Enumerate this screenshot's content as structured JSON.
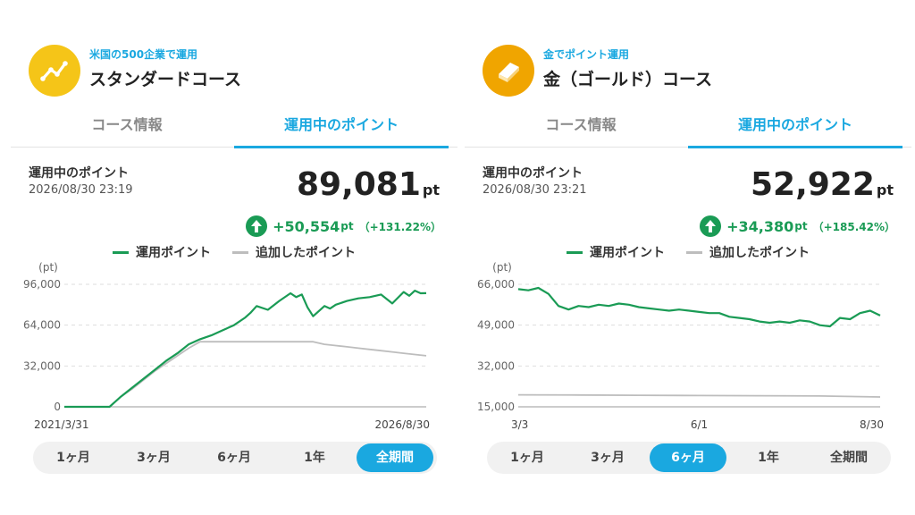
{
  "panels": [
    {
      "subtitle": "米国の500企業で運用",
      "title": "スタンダードコース",
      "logo": {
        "icon": "trend-up-icon",
        "color": "#f5c518"
      },
      "tabs": [
        "コース情報",
        "運用中のポイント"
      ],
      "active_tab": 1,
      "points_label": "運用中のポイント",
      "timestamp": "2026/08/30 23:19",
      "points_value": "89,081",
      "points_unit": "pt",
      "gain_value": "+50,554",
      "gain_unit": "pt",
      "gain_percent": "（+131.22%）",
      "legend": [
        "運用ポイント",
        "追加したポイント"
      ],
      "periods": [
        "1ヶ月",
        "3ヶ月",
        "6ヶ月",
        "1年",
        "全期間"
      ],
      "active_period": 4,
      "colors": {
        "accent": "#1aa8e0",
        "series_main": "#1a9b55",
        "series_added": "#bdbdbd",
        "gain": "#1a9b55"
      },
      "chart_data": {
        "type": "line",
        "unit_label": "(pt)",
        "y_ticks": [
          "96,000",
          "64,000",
          "32,000",
          "0"
        ],
        "y_tick_values": [
          96000,
          64000,
          32000,
          0
        ],
        "ylim": [
          0,
          96000
        ],
        "x_start_label": "2021/3/31",
        "x_end_label": "2026/8/30",
        "x_range": [
          0,
          64
        ],
        "x_unit": "months since 2021/3/31",
        "series": [
          {
            "name": "運用ポイント",
            "x": [
              0,
              2,
              4,
              6,
              8,
              10,
              12,
              14,
              16,
              18,
              20,
              22,
              24,
              26,
              28,
              30,
              32,
              33,
              34,
              36,
              38,
              40,
              41,
              42,
              43,
              44,
              46,
              47,
              48,
              50,
              52,
              54,
              56,
              58,
              60,
              61,
              62,
              63,
              64
            ],
            "y": [
              0,
              0,
              0,
              0,
              0,
              8000,
              15000,
              22000,
              29000,
              36000,
              42000,
              49000,
              53000,
              56000,
              60000,
              64000,
              70000,
              74000,
              79000,
              76000,
              83000,
              89000,
              86000,
              88000,
              78000,
              71000,
              79000,
              77000,
              80000,
              83000,
              85000,
              86000,
              88000,
              81000,
              90000,
              87000,
              91000,
              89000,
              89081
            ]
          },
          {
            "name": "追加したポイント",
            "x": [
              0,
              2,
              4,
              6,
              8,
              10,
              12,
              14,
              16,
              18,
              20,
              22,
              24,
              26,
              28,
              30,
              32,
              34,
              36,
              38,
              40,
              42,
              44,
              46,
              48,
              50,
              52,
              54,
              56,
              58,
              60,
              62,
              64
            ],
            "y": [
              0,
              0,
              0,
              0,
              0,
              8000,
              14000,
              21000,
              28000,
              34000,
              40000,
              46000,
              51000,
              51000,
              51000,
              51000,
              51000,
              51000,
              51000,
              51000,
              51000,
              51000,
              51000,
              49000,
              48000,
              47000,
              46000,
              45000,
              44000,
              43000,
              42000,
              41000,
              40000
            ]
          }
        ]
      }
    },
    {
      "subtitle": "金でポイント運用",
      "title": "金（ゴールド）コース",
      "logo": {
        "icon": "gold-bar-icon",
        "color": "#f0a500"
      },
      "tabs": [
        "コース情報",
        "運用中のポイント"
      ],
      "active_tab": 1,
      "points_label": "運用中のポイント",
      "timestamp": "2026/08/30 23:21",
      "points_value": "52,922",
      "points_unit": "pt",
      "gain_value": "+34,380",
      "gain_unit": "pt",
      "gain_percent": "（+185.42%）",
      "legend": [
        "運用ポイント",
        "追加したポイント"
      ],
      "periods": [
        "1ヶ月",
        "3ヶ月",
        "6ヶ月",
        "1年",
        "全期間"
      ],
      "active_period": 2,
      "colors": {
        "accent": "#1aa8e0",
        "series_main": "#1a9b55",
        "series_added": "#bdbdbd",
        "gain": "#1a9b55"
      },
      "chart_data": {
        "type": "line",
        "unit_label": "(pt)",
        "y_ticks": [
          "66,000",
          "49,000",
          "32,000",
          "15,000"
        ],
        "y_tick_values": [
          66000,
          49000,
          32000,
          15000
        ],
        "ylim": [
          15000,
          66000
        ],
        "x_tick_labels": [
          "3/3",
          "6/1",
          "8/30"
        ],
        "x_tick_values": [
          0,
          90,
          180
        ],
        "x_range": [
          0,
          180
        ],
        "x_unit": "days since 3/3",
        "series": [
          {
            "name": "運用ポイント",
            "x": [
              0,
              5,
              10,
              15,
              20,
              25,
              30,
              35,
              40,
              45,
              50,
              55,
              60,
              65,
              70,
              75,
              80,
              85,
              90,
              95,
              100,
              105,
              110,
              115,
              120,
              125,
              130,
              135,
              140,
              145,
              150,
              155,
              160,
              165,
              170,
              175,
              180
            ],
            "y": [
              64000,
              63500,
              64500,
              62000,
              57000,
              55500,
              57000,
              56500,
              57500,
              57000,
              58000,
              57500,
              56500,
              56000,
              55500,
              55000,
              55500,
              55000,
              54500,
              54000,
              54000,
              52500,
              52000,
              51500,
              50500,
              50000,
              50500,
              50000,
              51000,
              50500,
              49000,
              48500,
              52000,
              51500,
              54000,
              55000,
              53000
            ]
          },
          {
            "name": "追加したポイント",
            "x": [
              0,
              30,
              60,
              90,
              120,
              150,
              180
            ],
            "y": [
              20000,
              19900,
              19800,
              19700,
              19600,
              19500,
              19100
            ]
          }
        ]
      }
    }
  ]
}
